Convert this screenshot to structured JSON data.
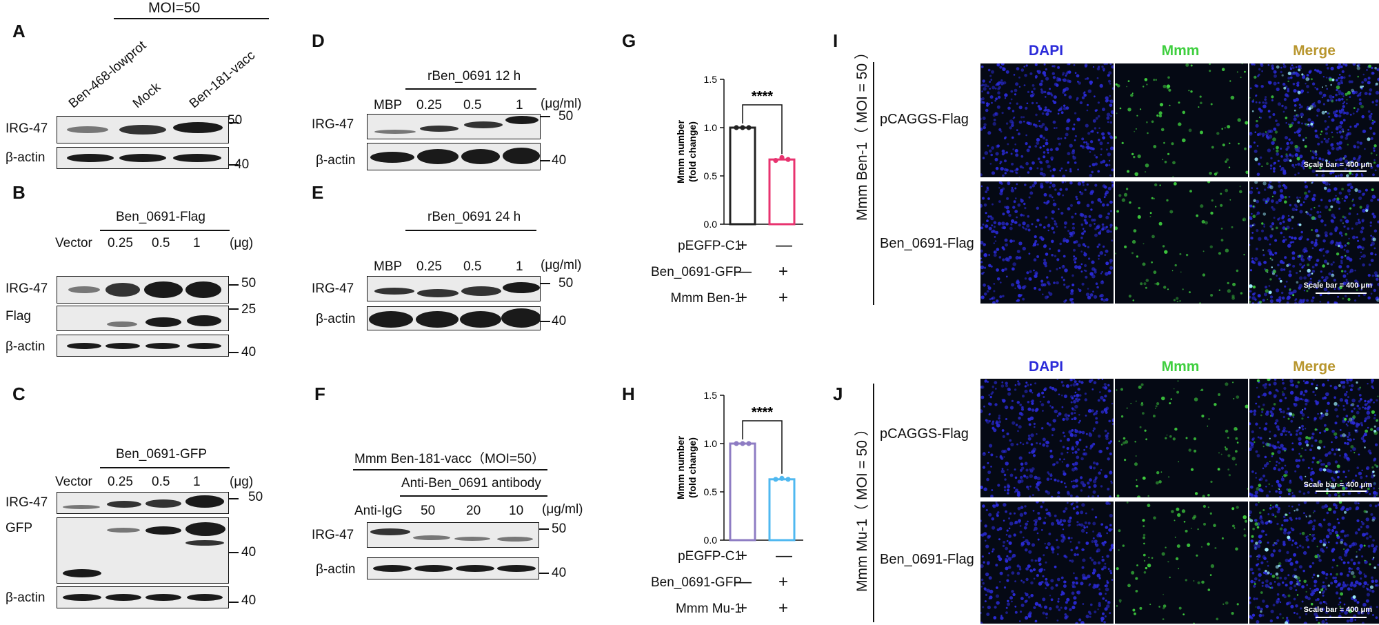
{
  "panels": {
    "A": "A",
    "B": "B",
    "C": "C",
    "D": "D",
    "E": "E",
    "F": "F",
    "G": "G",
    "H": "H",
    "I": "I",
    "J": "J"
  },
  "A": {
    "moi": "MOI=50",
    "lanes": [
      "Ben-468-lowprot",
      "Mock",
      "Ben-181-vacc"
    ],
    "rows": [
      "IRG-47",
      "β-actin"
    ],
    "mw": [
      "50",
      "40"
    ]
  },
  "B": {
    "header": "Ben_0691-Flag",
    "lanes": [
      "Vector",
      "0.25",
      "0.5",
      "1"
    ],
    "unit": "(μg)",
    "rows": [
      "IRG-47",
      "Flag",
      "β-actin"
    ],
    "mw": [
      "50",
      "25",
      "40"
    ]
  },
  "C": {
    "header": "Ben_0691-GFP",
    "lanes": [
      "Vector",
      "0.25",
      "0.5",
      "1"
    ],
    "unit": "(μg)",
    "rows": [
      "IRG-47",
      "GFP",
      "β-actin"
    ],
    "mw": [
      "50",
      "40",
      "40"
    ]
  },
  "D": {
    "header": "rBen_0691 12 h",
    "lanes": [
      "MBP",
      "0.25",
      "0.5",
      "1"
    ],
    "unit": "(μg/ml)",
    "rows": [
      "IRG-47",
      "β-actin"
    ],
    "mw": [
      "50",
      "40"
    ]
  },
  "E": {
    "header": "rBen_0691 24 h",
    "lanes": [
      "MBP",
      "0.25",
      "0.5",
      "1"
    ],
    "unit": "(μg/ml)",
    "rows": [
      "IRG-47",
      "β-actin"
    ],
    "mw": [
      "50",
      "40"
    ]
  },
  "F": {
    "header1": "Mmm Ben-181-vacc（MOI=50）",
    "header2": "Anti-Ben_0691 antibody",
    "lanes": [
      "Anti-IgG",
      "50",
      "20",
      "10"
    ],
    "unit": "(μg/ml)",
    "rows": [
      "IRG-47",
      "β-actin"
    ],
    "mw": [
      "50",
      "40"
    ]
  },
  "G": {
    "signif": "****",
    "conditions": [
      {
        "label": "pEGFP-C1",
        "values": [
          "+",
          "—"
        ]
      },
      {
        "label": "Ben_0691-GFP",
        "values": [
          "—",
          "+"
        ]
      },
      {
        "label": "Mmm Ben-1",
        "values": [
          "+",
          "+"
        ]
      }
    ],
    "ylabel": [
      "Mmm number",
      "(fold change)"
    ],
    "yticks": [
      "0.0",
      "0.5",
      "1.0",
      "1.5"
    ],
    "colors": [
      "#222222",
      "#e8336f"
    ]
  },
  "H": {
    "signif": "****",
    "conditions": [
      {
        "label": "pEGFP-C1",
        "values": [
          "+",
          "—"
        ]
      },
      {
        "label": "Ben_0691-GFP",
        "values": [
          "—",
          "+"
        ]
      },
      {
        "label": "Mmm Mu-1",
        "values": [
          "+",
          "+"
        ]
      }
    ],
    "ylabel": [
      "Mmm number",
      "(fold change)"
    ],
    "yticks": [
      "0.0",
      "0.5",
      "1.0",
      "1.5"
    ],
    "colors": [
      "#8e7cc3",
      "#4fb8f0"
    ]
  },
  "chart_data": [
    {
      "type": "bar",
      "title": "G",
      "categories": [
        "pEGFP-C1 + Mmm Ben-1",
        "Ben_0691-GFP + Mmm Ben-1"
      ],
      "values": [
        1.0,
        0.67
      ],
      "points": [
        [
          1.0,
          1.0,
          1.0
        ],
        [
          0.66,
          0.69,
          0.67
        ]
      ],
      "ylabel": "Mmm number (fold change)",
      "ylim": [
        0,
        1.5
      ]
    },
    {
      "type": "bar",
      "title": "H",
      "categories": [
        "pEGFP-C1 + Mmm Mu-1",
        "Ben_0691-GFP + Mmm Mu-1"
      ],
      "values": [
        1.0,
        0.63
      ],
      "points": [
        [
          1.0,
          1.0,
          1.0
        ],
        [
          0.63,
          0.64,
          0.63
        ]
      ],
      "ylabel": "Mmm number (fold change)",
      "ylim": [
        0,
        1.5
      ]
    }
  ],
  "I": {
    "channels": [
      "DAPI",
      "Mmm",
      "Merge"
    ],
    "group": "Mmm Ben-1（ MOI = 50 ）",
    "rows": [
      "pCAGGS-Flag",
      "Ben_0691-Flag"
    ],
    "scalebar": "Scale bar = 400 μm"
  },
  "J": {
    "channels": [
      "DAPI",
      "Mmm",
      "Merge"
    ],
    "group": "Mmm Mu-1（ MOI = 50 ）",
    "rows": [
      "pCAGGS-Flag",
      "Ben_0691-Flag"
    ],
    "scalebar": "Scale bar = 400 μm"
  },
  "style": {
    "dapi": "#2b2bd9",
    "mmm": "#3fcf3f",
    "merge": "#b8962e"
  }
}
